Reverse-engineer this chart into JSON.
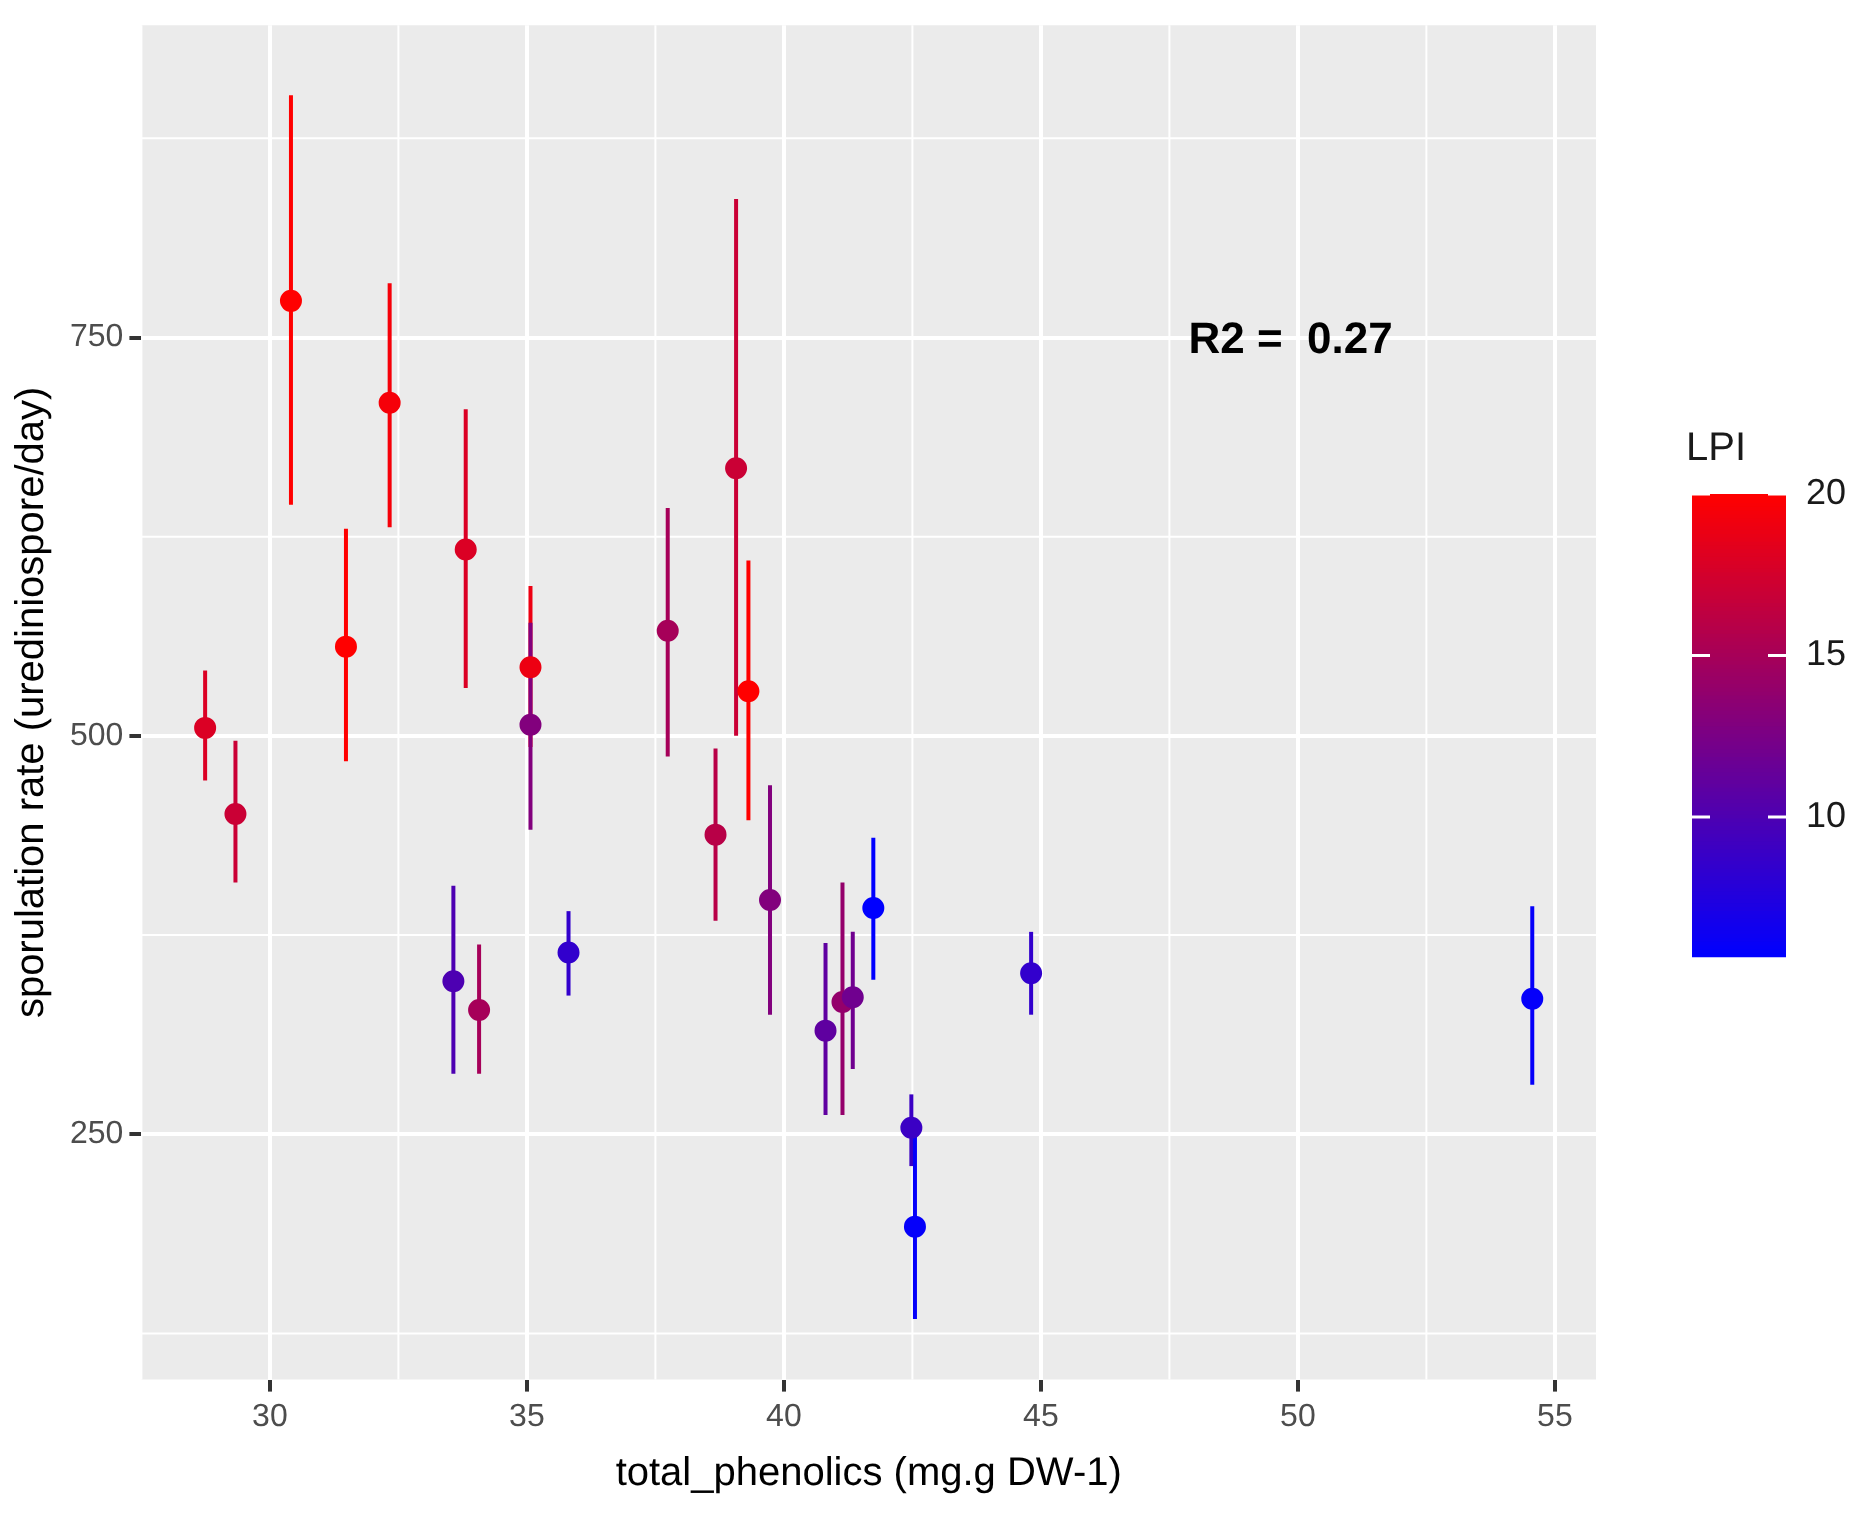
{
  "chart_data": {
    "type": "scatter",
    "xlabel": "total_phenolics (mg.g DW-1)",
    "ylabel": "sporulation rate (urediniospore/day)",
    "clabel": "LPI",
    "x": [
      28.74,
      29.33,
      30.41,
      31.48,
      32.33,
      33.81,
      35.07,
      35.07,
      37.74,
      39.07,
      39.31,
      38.67,
      39.73,
      33.57,
      34.07,
      35.81,
      40.81,
      41.14,
      41.34,
      41.74,
      42.48,
      42.55,
      44.81,
      54.56
    ],
    "values": [
      505,
      451,
      773,
      556,
      709,
      617,
      543,
      507,
      566,
      668,
      528,
      438,
      397,
      346,
      328,
      364,
      315,
      333,
      336,
      392,
      254,
      192,
      351,
      335
    ],
    "errors": [
      [
        472,
        541
      ],
      [
        408,
        497
      ],
      [
        645,
        902
      ],
      [
        484,
        630
      ],
      [
        631,
        784
      ],
      [
        530,
        705
      ],
      [
        493,
        594
      ],
      [
        441,
        571
      ],
      [
        487,
        643
      ],
      [
        500,
        837
      ],
      [
        447,
        610
      ],
      [
        384,
        492
      ],
      [
        325,
        469
      ],
      [
        288,
        406
      ],
      [
        288,
        369
      ],
      [
        337,
        390
      ],
      [
        262,
        370
      ],
      [
        262,
        408
      ],
      [
        291,
        377
      ],
      [
        347,
        436
      ],
      [
        230,
        275
      ],
      [
        134,
        249
      ],
      [
        325,
        377
      ],
      [
        281,
        393
      ]
    ],
    "cvalues": [
      18,
      17,
      20,
      20,
      19.5,
      18,
      19,
      13,
      15,
      17,
      20,
      16,
      13,
      10,
      15,
      8.5,
      11,
      14,
      12,
      5.7,
      9,
      6,
      8.5,
      6
    ],
    "clim": [
      5.7,
      20
    ],
    "cticks": [
      10,
      15,
      20
    ],
    "xlim": [
      27.5,
      55.8
    ],
    "xticks": [
      30,
      35,
      40,
      45,
      50,
      55
    ],
    "ylim": [
      96,
      946
    ],
    "yticks": [
      250,
      500,
      750
    ],
    "grid": true,
    "legend": false,
    "marker": "circle",
    "annotations": [
      "R2 =  0.27"
    ]
  }
}
